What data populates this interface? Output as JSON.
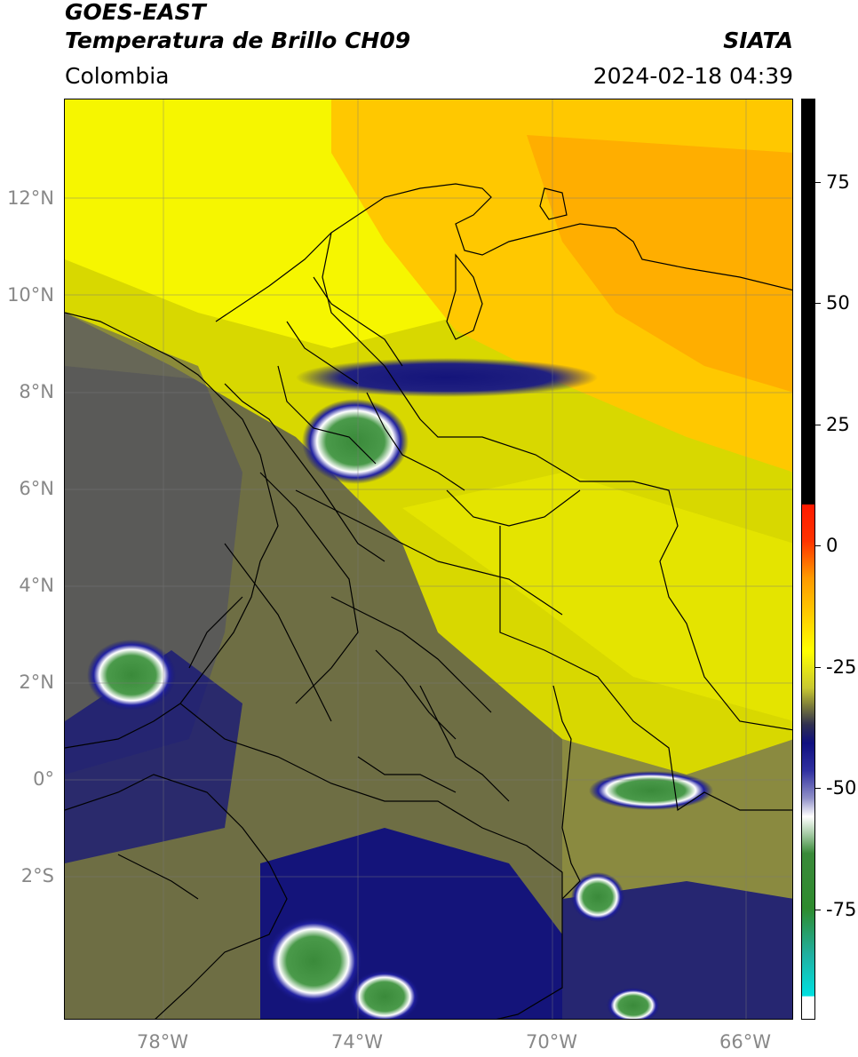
{
  "title": {
    "satellite": "GOES-EAST",
    "product": "Temperatura de Brillo CH09",
    "region": "Colombia",
    "source": "SIATA",
    "datetime": "2024-02-18 04:39"
  },
  "axes": {
    "lat_labels": [
      "12°N",
      "10°N",
      "8°N",
      "6°N",
      "4°N",
      "2°N",
      "0°",
      "2°S"
    ],
    "lon_labels": [
      "78°W",
      "74°W",
      "70°W",
      "66°W"
    ]
  },
  "colorbar": {
    "ticks": [
      "75",
      "50",
      "25",
      "0",
      "-25",
      "-50",
      "-75"
    ],
    "colors": {
      "black": "#000000",
      "red": "#ff1a00",
      "orange": "#ff9900",
      "yellow": "#ffff00",
      "olive": "#7a7a3a",
      "navy": "#101080",
      "white": "#ffffff",
      "green": "#2e8b2e",
      "cyan": "#00e0e0"
    }
  },
  "map_colors": {
    "orange": "#ffb400",
    "yellow": "#f2f200",
    "olive": "#8a8a40",
    "dark_olive": "#5a5a4a",
    "navy": "#14147a",
    "white": "#e8e8f0",
    "green": "#3a8a3a"
  }
}
